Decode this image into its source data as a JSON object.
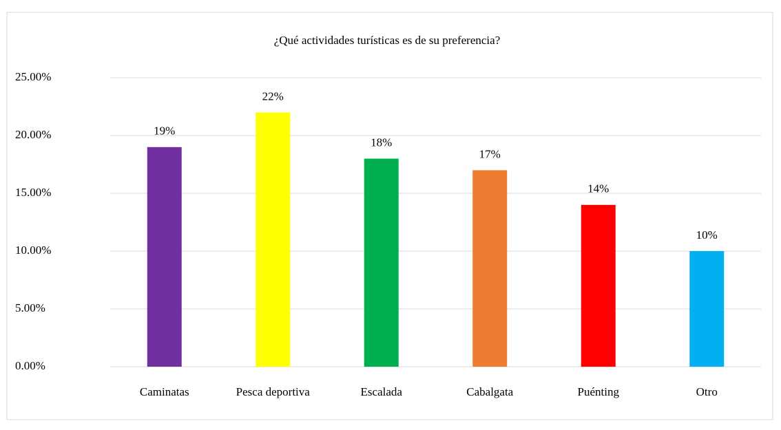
{
  "chart_data": {
    "type": "bar",
    "title": "¿Qué actividades turísticas es de su preferencia?",
    "categories": [
      "Caminatas",
      "Pesca deportiva",
      "Escalada",
      "Cabalgata",
      "Puénting",
      "Otro"
    ],
    "values": [
      19,
      22,
      18,
      17,
      14,
      10
    ],
    "value_labels": [
      "19%",
      "22%",
      "18%",
      "17%",
      "14%",
      "10%"
    ],
    "colors": [
      "#7030a0",
      "#ffff00",
      "#00b050",
      "#ed7d31",
      "#ff0000",
      "#00b0f0"
    ],
    "ylim": [
      0,
      25
    ],
    "yticks": [
      {
        "value": 0,
        "label": "0.00%"
      },
      {
        "value": 5,
        "label": "5.00%"
      },
      {
        "value": 10,
        "label": "10.00%"
      },
      {
        "value": 15,
        "label": "15.00%"
      },
      {
        "value": 20,
        "label": "20.00%"
      },
      {
        "value": 25,
        "label": "25.00%"
      }
    ],
    "grid": true
  }
}
